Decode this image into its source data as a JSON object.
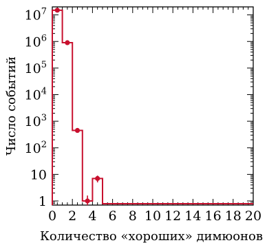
{
  "chart_data": {
    "type": "bar",
    "style": "step-histogram",
    "title": "",
    "xlabel": "Количество «хороших» димюонов",
    "ylabel": "Число событий",
    "x_scale": "linear",
    "y_scale": "log",
    "xlim": [
      0,
      20
    ],
    "ylim": [
      0.7,
      20000000
    ],
    "x_ticks": [
      "0",
      "2",
      "4",
      "6",
      "8",
      "10",
      "12",
      "14",
      "16",
      "18",
      "20"
    ],
    "y_ticks": [
      "1",
      "10",
      "10^2",
      "10^3",
      "10^4",
      "10^5",
      "10^6",
      "10^7"
    ],
    "color": "#c8102e",
    "series": [
      {
        "bins": [
          {
            "x": 0,
            "value": 15000000,
            "err": 0
          },
          {
            "x": 1,
            "value": 900000,
            "err": 0
          },
          {
            "x": 2,
            "value": 450,
            "err": 0
          },
          {
            "x": 3,
            "value": 1,
            "err": 0.6
          },
          {
            "x": 4,
            "value": 7,
            "err": 2.0
          },
          {
            "x": 5,
            "value": 0
          },
          {
            "x": 6,
            "value": 0
          },
          {
            "x": 7,
            "value": 0
          },
          {
            "x": 8,
            "value": 0
          },
          {
            "x": 9,
            "value": 0
          },
          {
            "x": 10,
            "value": 0
          },
          {
            "x": 11,
            "value": 0
          },
          {
            "x": 12,
            "value": 0
          },
          {
            "x": 13,
            "value": 0
          },
          {
            "x": 14,
            "value": 0
          },
          {
            "x": 15,
            "value": 0
          },
          {
            "x": 16,
            "value": 0
          },
          {
            "x": 17,
            "value": 0
          },
          {
            "x": 18,
            "value": 0
          },
          {
            "x": 19,
            "value": 0
          }
        ]
      }
    ],
    "grid": false,
    "legend": "none"
  }
}
